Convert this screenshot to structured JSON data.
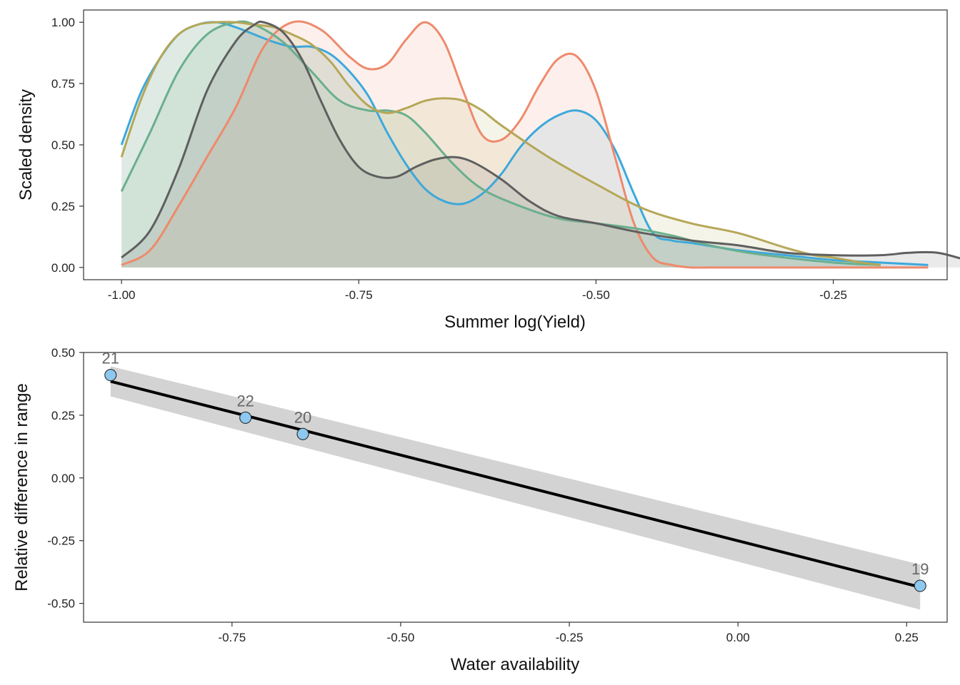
{
  "chart_data": [
    {
      "type": "area",
      "title": "",
      "xlabel": "Summer log(Yield)",
      "ylabel": "Scaled density",
      "xlim": [
        -1.04,
        -0.13
      ],
      "ylim": [
        -0.05,
        1.05
      ],
      "x_ticks": [
        -1.0,
        -0.75,
        -0.5,
        -0.25
      ],
      "x_tick_labels": [
        "-1.00",
        "-0.75",
        "-0.50",
        "-0.25"
      ],
      "y_ticks": [
        0,
        0.25,
        0.5,
        0.75,
        1.0
      ],
      "y_tick_labels": [
        "0.00",
        "0.25",
        "0.50",
        "0.75",
        "1.00"
      ],
      "grid": false,
      "legend": "none",
      "series": [
        {
          "color": "#3EA8DB",
          "x": [
            -1.0,
            -0.98,
            -0.96,
            -0.94,
            -0.92,
            -0.9,
            -0.88,
            -0.86,
            -0.84,
            -0.82,
            -0.8,
            -0.78,
            -0.76,
            -0.74,
            -0.72,
            -0.7,
            -0.68,
            -0.66,
            -0.64,
            -0.62,
            -0.6,
            -0.58,
            -0.56,
            -0.54,
            -0.52,
            -0.5,
            -0.48,
            -0.46,
            -0.44,
            -0.42,
            -0.4,
            -0.35,
            -0.3,
            -0.25,
            -0.2,
            -0.15
          ],
          "y": [
            0.5,
            0.71,
            0.85,
            0.95,
            0.99,
            1.0,
            0.98,
            0.95,
            0.92,
            0.9,
            0.9,
            0.87,
            0.8,
            0.7,
            0.55,
            0.42,
            0.32,
            0.27,
            0.26,
            0.3,
            0.38,
            0.49,
            0.57,
            0.62,
            0.64,
            0.6,
            0.48,
            0.3,
            0.14,
            0.11,
            0.1,
            0.07,
            0.05,
            0.03,
            0.02,
            0.01
          ]
        },
        {
          "color": "#EE8A6C",
          "x": [
            -1.0,
            -0.97,
            -0.94,
            -0.91,
            -0.88,
            -0.85,
            -0.82,
            -0.79,
            -0.76,
            -0.74,
            -0.72,
            -0.7,
            -0.68,
            -0.66,
            -0.64,
            -0.62,
            -0.6,
            -0.58,
            -0.56,
            -0.54,
            -0.52,
            -0.5,
            -0.48,
            -0.46,
            -0.44,
            -0.42,
            -0.4,
            -0.38,
            -0.35,
            -0.3,
            -0.25,
            -0.2,
            -0.15
          ],
          "y": [
            0.01,
            0.07,
            0.25,
            0.45,
            0.65,
            0.9,
            1.0,
            0.97,
            0.86,
            0.81,
            0.83,
            0.93,
            1.0,
            0.92,
            0.72,
            0.54,
            0.52,
            0.6,
            0.74,
            0.85,
            0.86,
            0.72,
            0.45,
            0.18,
            0.04,
            0.01,
            0.0,
            0.0,
            0.0,
            0.0,
            0.0,
            0.0,
            0.0
          ]
        },
        {
          "color": "#6AAF8E",
          "x": [
            -1.0,
            -0.97,
            -0.94,
            -0.91,
            -0.88,
            -0.86,
            -0.83,
            -0.8,
            -0.77,
            -0.74,
            -0.72,
            -0.7,
            -0.68,
            -0.65,
            -0.62,
            -0.58,
            -0.54,
            -0.5,
            -0.46,
            -0.42,
            -0.38,
            -0.34,
            -0.3,
            -0.25,
            -0.2
          ],
          "y": [
            0.31,
            0.55,
            0.8,
            0.95,
            1.0,
            0.99,
            0.92,
            0.8,
            0.68,
            0.64,
            0.64,
            0.62,
            0.55,
            0.42,
            0.32,
            0.25,
            0.2,
            0.18,
            0.16,
            0.13,
            0.09,
            0.06,
            0.04,
            0.02,
            0.01
          ]
        },
        {
          "color": "#B5A757",
          "x": [
            -1.0,
            -0.98,
            -0.96,
            -0.94,
            -0.92,
            -0.9,
            -0.88,
            -0.86,
            -0.84,
            -0.82,
            -0.8,
            -0.78,
            -0.76,
            -0.74,
            -0.72,
            -0.7,
            -0.68,
            -0.66,
            -0.64,
            -0.62,
            -0.6,
            -0.55,
            -0.5,
            -0.45,
            -0.4,
            -0.35,
            -0.3,
            -0.27,
            -0.25,
            -0.22,
            -0.2
          ],
          "y": [
            0.45,
            0.68,
            0.85,
            0.95,
            0.99,
            1.0,
            1.0,
            0.99,
            0.98,
            0.95,
            0.91,
            0.84,
            0.74,
            0.66,
            0.63,
            0.65,
            0.68,
            0.69,
            0.68,
            0.64,
            0.58,
            0.45,
            0.34,
            0.24,
            0.18,
            0.14,
            0.08,
            0.05,
            0.04,
            0.02,
            0.01
          ]
        },
        {
          "color": "#5F5F5F",
          "x": [
            -1.0,
            -0.97,
            -0.94,
            -0.91,
            -0.88,
            -0.86,
            -0.85,
            -0.83,
            -0.81,
            -0.79,
            -0.77,
            -0.75,
            -0.73,
            -0.71,
            -0.69,
            -0.67,
            -0.65,
            -0.63,
            -0.6,
            -0.57,
            -0.54,
            -0.5,
            -0.45,
            -0.4,
            -0.35,
            -0.3,
            -0.25,
            -0.2,
            -0.17,
            -0.14,
            -0.11
          ],
          "y": [
            0.04,
            0.15,
            0.4,
            0.72,
            0.92,
            0.99,
            1.0,
            0.96,
            0.85,
            0.68,
            0.52,
            0.41,
            0.37,
            0.37,
            0.41,
            0.44,
            0.45,
            0.43,
            0.36,
            0.27,
            0.21,
            0.18,
            0.14,
            0.11,
            0.09,
            0.06,
            0.05,
            0.05,
            0.06,
            0.06,
            0.03
          ]
        }
      ]
    },
    {
      "type": "scatter",
      "title": "",
      "xlabel": "Water availability",
      "ylabel": "Relative difference in range",
      "xlim": [
        -0.97,
        0.31
      ],
      "ylim": [
        -0.575,
        0.5
      ],
      "x_ticks": [
        -0.75,
        -0.5,
        -0.25,
        0.0,
        0.25
      ],
      "x_tick_labels": [
        "-0.75",
        "-0.50",
        "-0.25",
        "0.00",
        "0.25"
      ],
      "y_ticks": [
        -0.5,
        -0.25,
        0.0,
        0.25,
        0.5
      ],
      "y_tick_labels": [
        "-0.50",
        "-0.25",
        "0.00",
        "0.25",
        "0.50"
      ],
      "grid": false,
      "legend": "none",
      "point_color": "#8DC8F0",
      "points": [
        {
          "x": -0.93,
          "y": 0.41,
          "label": "21"
        },
        {
          "x": -0.73,
          "y": 0.24,
          "label": "22"
        },
        {
          "x": -0.645,
          "y": 0.175,
          "label": "20"
        },
        {
          "x": 0.27,
          "y": -0.43,
          "label": "19"
        }
      ],
      "fit": {
        "x": [
          -0.93,
          0.27
        ],
        "y": [
          0.385,
          -0.435
        ],
        "ci_lower": [
          0.325,
          -0.525
        ],
        "ci_upper": [
          0.445,
          -0.345
        ],
        "line_color": "#000000",
        "band_color": "#D3D3D3"
      }
    }
  ]
}
